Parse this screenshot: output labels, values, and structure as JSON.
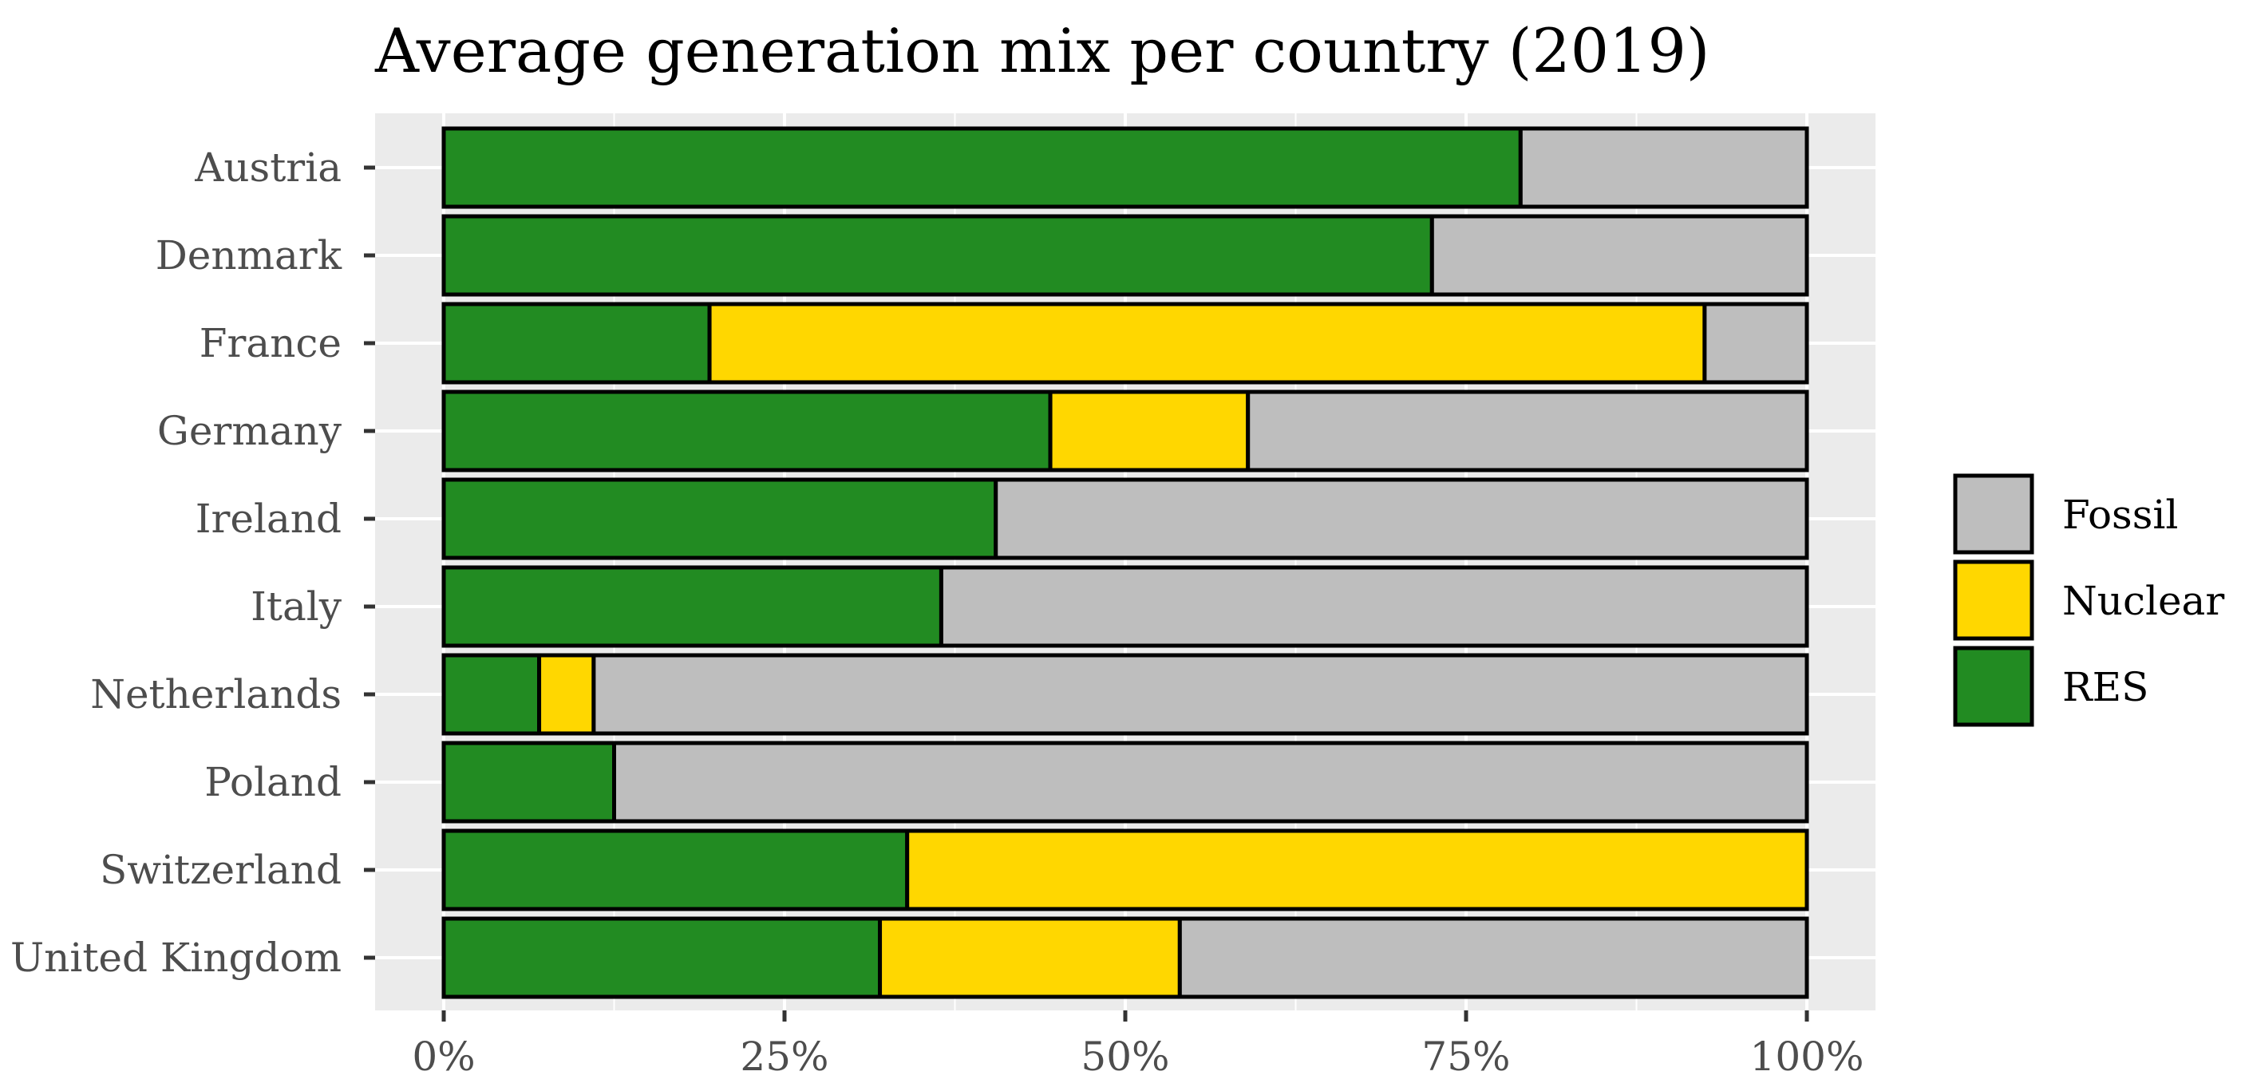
{
  "chart_data": {
    "type": "bar",
    "orientation": "horizontal",
    "stacked": true,
    "title": "Average generation mix per country (2019)",
    "xlabel": "",
    "ylabel": "",
    "xlim": [
      0,
      1
    ],
    "x_ticks": [
      0,
      0.25,
      0.5,
      0.75,
      1
    ],
    "x_tick_labels": [
      "0%",
      "25%",
      "50%",
      "75%",
      "100%"
    ],
    "grid": true,
    "legend_position": "right",
    "categories": [
      "Austria",
      "Denmark",
      "France",
      "Germany",
      "Ireland",
      "Italy",
      "Netherlands",
      "Poland",
      "Switzerland",
      "United Kingdom"
    ],
    "series": [
      {
        "name": "RES",
        "color": "#228b22",
        "values": [
          0.79,
          0.725,
          0.195,
          0.445,
          0.405,
          0.365,
          0.07,
          0.125,
          0.34,
          0.32
        ]
      },
      {
        "name": "Nuclear",
        "color": "#ffd700",
        "values": [
          0.0,
          0.0,
          0.73,
          0.145,
          0.0,
          0.0,
          0.04,
          0.0,
          0.66,
          0.22
        ]
      },
      {
        "name": "Fossil",
        "color": "#bebebe",
        "values": [
          0.21,
          0.275,
          0.075,
          0.41,
          0.595,
          0.635,
          0.89,
          0.875,
          0.0,
          0.46
        ]
      }
    ],
    "legend_order": [
      "Fossil",
      "Nuclear",
      "RES"
    ]
  }
}
